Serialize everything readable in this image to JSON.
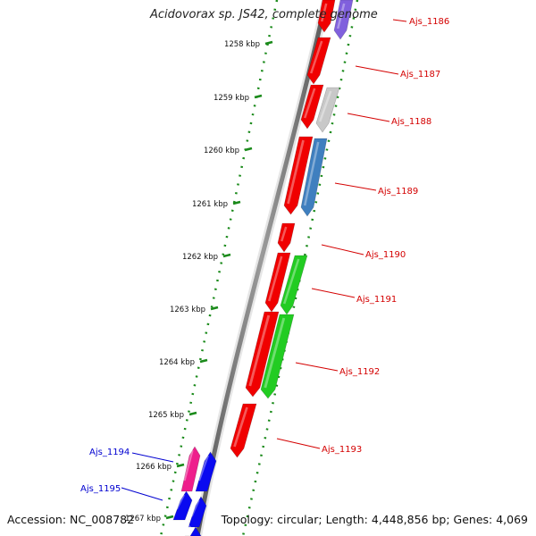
{
  "title": "Acidovorax sp. JS42, complete genome",
  "footer": {
    "accession_label": "Accession: NC_008782",
    "summary_label": "Topology: circular; Length: 4,448,856 bp; Genes: 4,069"
  },
  "ruler": {
    "unit": "kbp",
    "ticks": [
      "1258 kbp",
      "1259 kbp",
      "1260 kbp",
      "1261 kbp",
      "1262 kbp",
      "1263 kbp",
      "1264 kbp",
      "1265 kbp",
      "1266 kbp",
      "1267 kbp"
    ]
  },
  "colors": {
    "backbone": "#7a7a7a",
    "inner_ruler": "#1a8a1a",
    "outer_ruler": "#1a8a1a",
    "forward_label": "#d40000",
    "reverse_label": "#0000d0",
    "red": "#f00000",
    "blue": "#0a0af0",
    "magenta": "#ee1e8c",
    "violet": "#8060dd",
    "lightgray": "#c8c8c8",
    "steelblue": "#3f7fbf",
    "green": "#22cc22"
  },
  "genes": {
    "forward_labels": [
      "Ajs_1186",
      "Ajs_1187",
      "Ajs_1188",
      "Ajs_1189",
      "Ajs_1190",
      "Ajs_1191",
      "Ajs_1192",
      "Ajs_1193"
    ],
    "reverse_labels": [
      "Ajs_1194",
      "Ajs_1195"
    ]
  }
}
